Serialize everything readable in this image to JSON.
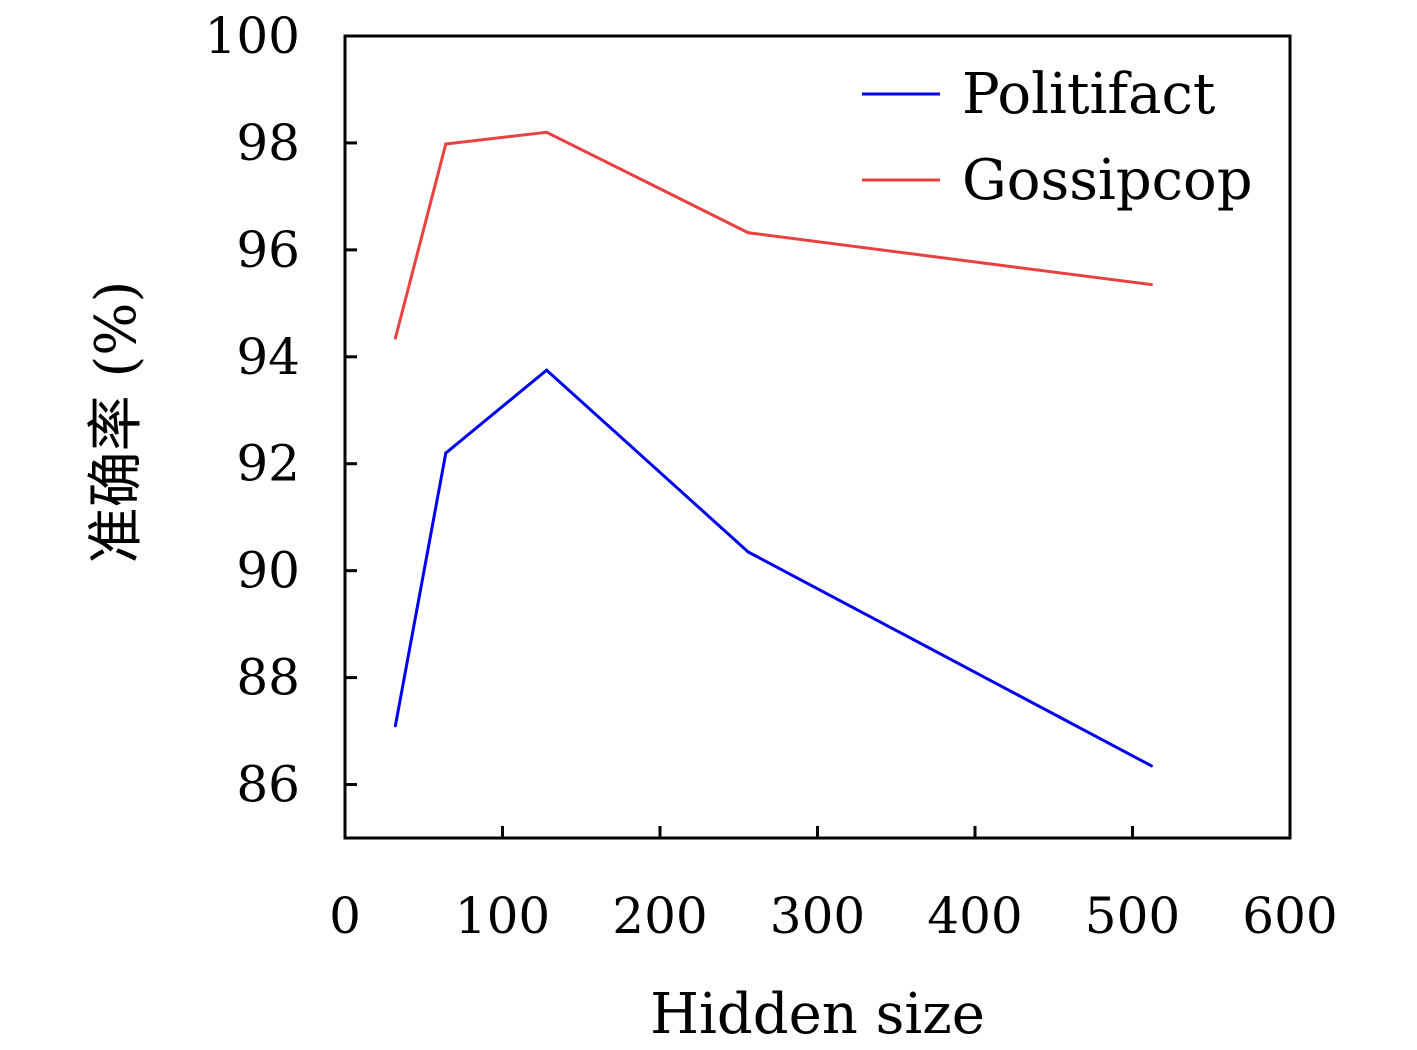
{
  "chart_data": {
    "type": "line",
    "xlabel": "Hidden size",
    "ylabel": "准确率 (%)",
    "xlim": [
      0,
      600
    ],
    "ylim": [
      85,
      100
    ],
    "xticks": [
      0,
      100,
      200,
      300,
      400,
      500,
      600
    ],
    "yticks": [
      86,
      88,
      90,
      92,
      94,
      96,
      98,
      100
    ],
    "x": [
      32,
      64,
      128,
      256,
      512
    ],
    "series": [
      {
        "name": "Politifact",
        "color": "#0000ee",
        "values": [
          87.1,
          92.2,
          93.75,
          90.35,
          86.35
        ]
      },
      {
        "name": "Gossipcop",
        "color": "#e8413f",
        "values": [
          94.35,
          97.98,
          98.2,
          96.32,
          95.35
        ]
      }
    ],
    "legend_position": "top-right",
    "grid": false
  }
}
